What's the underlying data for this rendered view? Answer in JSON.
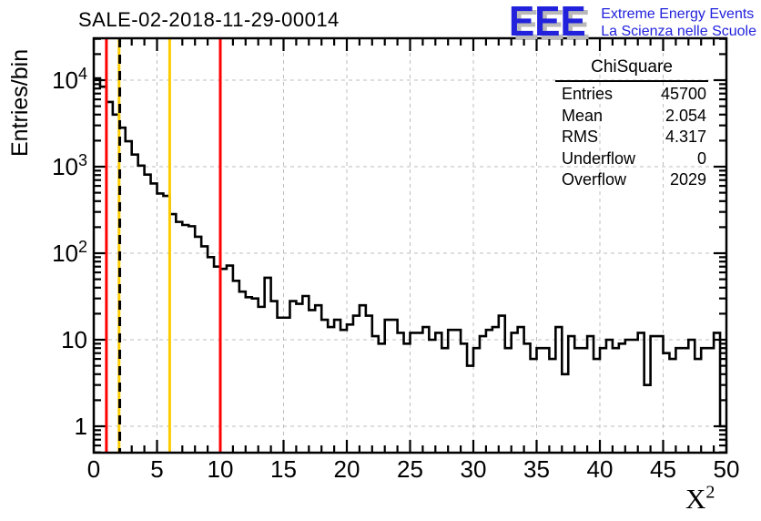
{
  "header": {
    "title": "SALE-02-2018-11-29-00014"
  },
  "logo": {
    "acronym": "EEE",
    "line1": "Extreme Energy Events",
    "line2": "La Scienza nelle Scuole",
    "color": "#2222dd"
  },
  "stats": {
    "title": "ChiSquare",
    "rows": [
      {
        "label": "Entries",
        "value": "45700"
      },
      {
        "label": "Mean",
        "value": "2.054"
      },
      {
        "label": "RMS",
        "value": "4.317"
      },
      {
        "label": "Underflow",
        "value": "0"
      },
      {
        "label": "Overflow",
        "value": "2029"
      }
    ]
  },
  "chart_data": {
    "type": "bar",
    "subtype": "step-histogram",
    "title": "SALE-02-2018-11-29-00014",
    "xlabel": "X^2",
    "xlabel_base": "X",
    "xlabel_exp": "2",
    "ylabel": "Entries/bin",
    "x_min": 0,
    "x_max": 50,
    "y_min": 0.495,
    "y_max": 30500,
    "y_scale": "log",
    "grid": {
      "on": true,
      "color": "#bdbdbd",
      "dash": "4 4"
    },
    "line_color": "#000000",
    "bin_start": 0,
    "bin_width": 0.5,
    "bins": [
      10500,
      8400,
      5600,
      4000,
      2820,
      1970,
      1380,
      1030,
      810,
      640,
      490,
      460,
      283,
      230,
      212,
      205,
      155,
      120,
      90,
      70,
      66,
      72,
      48,
      36,
      31,
      30,
      24,
      52,
      28,
      18,
      18,
      28,
      26,
      32,
      22,
      25,
      17,
      14,
      17,
      13,
      15,
      19,
      25,
      19,
      11,
      9,
      17,
      17,
      12,
      9,
      12,
      12,
      14,
      10,
      12,
      8,
      13,
      13,
      9,
      5,
      8,
      11,
      13,
      14,
      19,
      8,
      12,
      14,
      9,
      6,
      8,
      8,
      6,
      14,
      4,
      11,
      8,
      8,
      11,
      6,
      8,
      10,
      8,
      9,
      10,
      10,
      12,
      3,
      11,
      11,
      7,
      6,
      8,
      8,
      10,
      6,
      8,
      8,
      12,
      1
    ],
    "x_ticks": [
      0,
      5,
      10,
      15,
      20,
      25,
      30,
      35,
      40,
      45,
      50
    ],
    "y_ticks": [
      {
        "value": 1,
        "label": "1"
      },
      {
        "value": 10,
        "label": "10"
      },
      {
        "value": 100,
        "label": "10^2"
      },
      {
        "value": 1000,
        "label": "10^3"
      },
      {
        "value": 10000,
        "label": "10^4"
      }
    ],
    "marker_lines": [
      {
        "x": 1,
        "color": "#ff0000",
        "style": "solid",
        "name": "red-cut-line-low"
      },
      {
        "x": 2,
        "color": "#ffcc00",
        "style": "solid",
        "name": "yellow-cut-line-low"
      },
      {
        "x": 2.054,
        "color": "#000000",
        "style": "dashed",
        "name": "mean-dashed-line"
      },
      {
        "x": 6,
        "color": "#ffcc00",
        "style": "solid",
        "name": "yellow-cut-line-high"
      },
      {
        "x": 10,
        "color": "#ff0000",
        "style": "solid",
        "name": "red-cut-line-high"
      }
    ]
  }
}
